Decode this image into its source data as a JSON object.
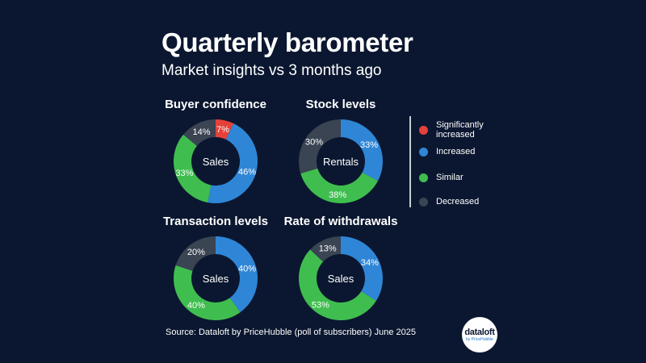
{
  "header": {
    "title": "Quarterly barometer",
    "subtitle": "Market insights vs 3 months ago"
  },
  "legend": {
    "items": [
      {
        "label": "Significantly increased",
        "color": "#e5413b"
      },
      {
        "label": "Increased",
        "color": "#2f86d6"
      },
      {
        "label": "Similar",
        "color": "#3fbe4f"
      },
      {
        "label": "Decreased",
        "color": "#3a4452"
      }
    ]
  },
  "chart_data": [
    {
      "type": "pie",
      "donut": true,
      "title": "Buyer confidence",
      "center_label": "Sales",
      "categories": [
        "Significantly increased",
        "Increased",
        "Similar",
        "Decreased"
      ],
      "values": [
        7,
        46,
        33,
        14
      ],
      "labels": [
        "7%",
        "46%",
        "33%",
        "14%"
      ]
    },
    {
      "type": "pie",
      "donut": true,
      "title": "Stock levels",
      "center_label": "Rentals",
      "categories": [
        "Increased",
        "Similar",
        "Decreased"
      ],
      "values": [
        33,
        38,
        30
      ],
      "labels": [
        "33%",
        "38%",
        "30%"
      ]
    },
    {
      "type": "pie",
      "donut": true,
      "title": "Transaction levels",
      "center_label": "Sales",
      "categories": [
        "Increased",
        "Similar",
        "Decreased"
      ],
      "values": [
        40,
        40,
        20
      ],
      "labels": [
        "40%",
        "40%",
        "20%"
      ]
    },
    {
      "type": "pie",
      "donut": true,
      "title": "Rate of withdrawals",
      "center_label": "Sales",
      "categories": [
        "Increased",
        "Similar",
        "Decreased"
      ],
      "values": [
        34,
        53,
        13
      ],
      "labels": [
        "34%",
        "53%",
        "13%"
      ]
    }
  ],
  "footer": {
    "source": "Source: Dataloft by PriceHubble (poll of subscribers) June 2025",
    "logo_text": "dataloft",
    "logo_subtext": "by PriceHubble"
  }
}
